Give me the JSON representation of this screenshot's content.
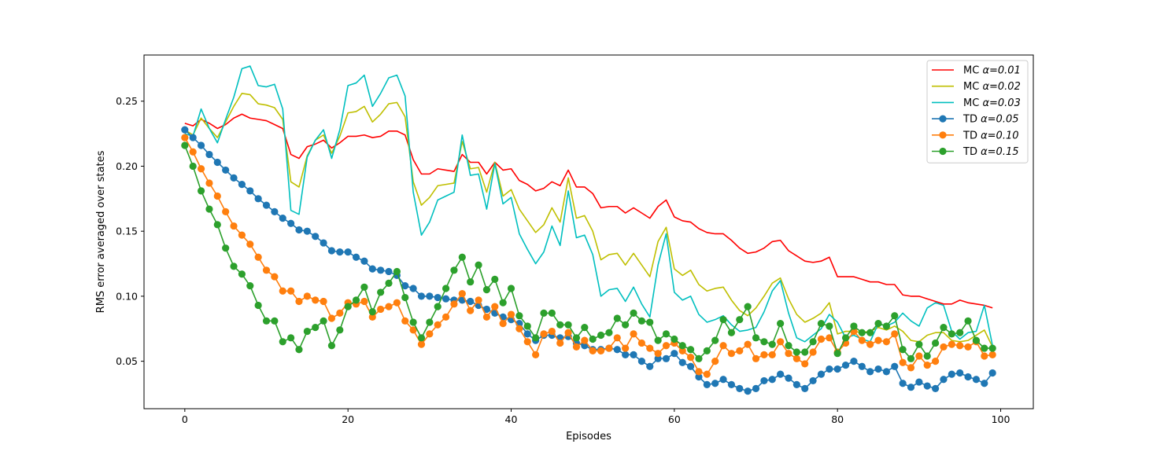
{
  "chart_data": {
    "type": "line",
    "title": "",
    "xlabel": "Episodes",
    "ylabel": "RMS error averaged over states",
    "xlim": [
      -5,
      104
    ],
    "ylim": [
      0.0135,
      0.2855
    ],
    "xticks": [
      0,
      20,
      40,
      60,
      80,
      100
    ],
    "yticks": [
      0.05,
      0.1,
      0.15,
      0.2,
      0.25
    ],
    "xtick_labels": [
      "0",
      "20",
      "40",
      "60",
      "80",
      "100"
    ],
    "ytick_labels": [
      "0.05",
      "0.10",
      "0.15",
      "0.20",
      "0.25"
    ],
    "grid": false,
    "legend_position": "top-right",
    "series": [
      {
        "name": "MC α=0.01",
        "prefix": "MC ",
        "param": "α=0.01",
        "color": "#ff0000",
        "marker": false,
        "values": [
          0.233,
          0.231,
          0.236,
          0.233,
          0.229,
          0.232,
          0.237,
          0.24,
          0.237,
          0.236,
          0.235,
          0.232,
          0.229,
          0.209,
          0.206,
          0.215,
          0.217,
          0.22,
          0.214,
          0.218,
          0.223,
          0.223,
          0.224,
          0.222,
          0.223,
          0.227,
          0.227,
          0.224,
          0.205,
          0.194,
          0.194,
          0.198,
          0.197,
          0.196,
          0.209,
          0.203,
          0.203,
          0.194,
          0.203,
          0.197,
          0.198,
          0.189,
          0.186,
          0.181,
          0.183,
          0.188,
          0.185,
          0.197,
          0.184,
          0.184,
          0.179,
          0.168,
          0.169,
          0.169,
          0.164,
          0.168,
          0.164,
          0.16,
          0.169,
          0.174,
          0.161,
          0.158,
          0.157,
          0.152,
          0.149,
          0.148,
          0.148,
          0.143,
          0.137,
          0.133,
          0.134,
          0.137,
          0.142,
          0.143,
          0.135,
          0.131,
          0.127,
          0.126,
          0.127,
          0.13,
          0.115,
          0.115,
          0.115,
          0.113,
          0.111,
          0.111,
          0.109,
          0.109,
          0.101,
          0.1,
          0.1,
          0.098,
          0.096,
          0.094,
          0.094,
          0.097,
          0.095,
          0.094,
          0.093,
          0.091
        ]
      },
      {
        "name": "MC α=0.02",
        "prefix": "MC ",
        "param": "α=0.02",
        "color": "#bfbf00",
        "marker": false,
        "values": [
          0.228,
          0.224,
          0.237,
          0.229,
          0.222,
          0.234,
          0.246,
          0.256,
          0.255,
          0.248,
          0.247,
          0.245,
          0.236,
          0.188,
          0.184,
          0.208,
          0.22,
          0.224,
          0.21,
          0.223,
          0.241,
          0.242,
          0.246,
          0.234,
          0.24,
          0.248,
          0.249,
          0.238,
          0.188,
          0.17,
          0.176,
          0.185,
          0.186,
          0.187,
          0.219,
          0.198,
          0.199,
          0.18,
          0.203,
          0.177,
          0.182,
          0.167,
          0.158,
          0.149,
          0.155,
          0.168,
          0.157,
          0.191,
          0.16,
          0.162,
          0.15,
          0.128,
          0.132,
          0.133,
          0.124,
          0.133,
          0.124,
          0.115,
          0.142,
          0.153,
          0.121,
          0.116,
          0.12,
          0.109,
          0.104,
          0.106,
          0.107,
          0.097,
          0.089,
          0.085,
          0.091,
          0.1,
          0.11,
          0.114,
          0.098,
          0.086,
          0.08,
          0.083,
          0.087,
          0.095,
          0.071,
          0.073,
          0.073,
          0.072,
          0.073,
          0.076,
          0.074,
          0.077,
          0.073,
          0.066,
          0.065,
          0.07,
          0.072,
          0.072,
          0.066,
          0.065,
          0.066,
          0.07,
          0.074,
          0.061
        ]
      },
      {
        "name": "MC α=0.03",
        "prefix": "MC ",
        "param": "α=0.03",
        "color": "#00bfbf",
        "marker": false,
        "values": [
          0.225,
          0.223,
          0.244,
          0.229,
          0.218,
          0.236,
          0.253,
          0.275,
          0.277,
          0.262,
          0.261,
          0.263,
          0.244,
          0.166,
          0.163,
          0.207,
          0.22,
          0.228,
          0.206,
          0.228,
          0.262,
          0.264,
          0.27,
          0.246,
          0.256,
          0.268,
          0.27,
          0.254,
          0.18,
          0.147,
          0.157,
          0.174,
          0.177,
          0.18,
          0.224,
          0.193,
          0.194,
          0.167,
          0.202,
          0.171,
          0.176,
          0.148,
          0.136,
          0.125,
          0.134,
          0.154,
          0.139,
          0.181,
          0.145,
          0.147,
          0.132,
          0.1,
          0.105,
          0.106,
          0.096,
          0.107,
          0.094,
          0.084,
          0.124,
          0.148,
          0.103,
          0.097,
          0.1,
          0.086,
          0.08,
          0.082,
          0.085,
          0.078,
          0.073,
          0.074,
          0.076,
          0.088,
          0.104,
          0.112,
          0.087,
          0.068,
          0.065,
          0.07,
          0.075,
          0.086,
          0.08,
          0.068,
          0.07,
          0.067,
          0.065,
          0.079,
          0.077,
          0.08,
          0.087,
          0.081,
          0.077,
          0.091,
          0.095,
          0.093,
          0.073,
          0.067,
          0.072,
          0.073,
          0.093,
          0.062
        ]
      },
      {
        "name": "TD α=0.05",
        "prefix": "TD ",
        "param": "α=0.05",
        "color": "#1f77b4",
        "marker": true,
        "values": [
          0.228,
          0.222,
          0.216,
          0.209,
          0.203,
          0.197,
          0.191,
          0.186,
          0.181,
          0.175,
          0.17,
          0.165,
          0.16,
          0.156,
          0.151,
          0.15,
          0.146,
          0.141,
          0.135,
          0.134,
          0.134,
          0.13,
          0.127,
          0.121,
          0.12,
          0.119,
          0.116,
          0.108,
          0.106,
          0.1,
          0.1,
          0.099,
          0.098,
          0.097,
          0.097,
          0.096,
          0.093,
          0.09,
          0.087,
          0.084,
          0.082,
          0.079,
          0.071,
          0.066,
          0.07,
          0.07,
          0.068,
          0.069,
          0.064,
          0.062,
          0.059,
          0.059,
          0.06,
          0.059,
          0.055,
          0.055,
          0.05,
          0.046,
          0.052,
          0.052,
          0.056,
          0.049,
          0.046,
          0.038,
          0.032,
          0.033,
          0.036,
          0.032,
          0.029,
          0.027,
          0.029,
          0.035,
          0.036,
          0.04,
          0.037,
          0.032,
          0.029,
          0.035,
          0.04,
          0.044,
          0.044,
          0.047,
          0.05,
          0.046,
          0.042,
          0.044,
          0.042,
          0.046,
          0.033,
          0.03,
          0.034,
          0.031,
          0.029,
          0.036,
          0.04,
          0.041,
          0.038,
          0.036,
          0.033,
          0.041
        ]
      },
      {
        "name": "TD α=0.10",
        "prefix": "TD ",
        "param": "α=0.10",
        "color": "#ff7f0e",
        "marker": true,
        "values": [
          0.222,
          0.211,
          0.198,
          0.187,
          0.177,
          0.165,
          0.154,
          0.147,
          0.14,
          0.13,
          0.12,
          0.115,
          0.104,
          0.104,
          0.096,
          0.1,
          0.097,
          0.096,
          0.083,
          0.087,
          0.095,
          0.094,
          0.096,
          0.084,
          0.09,
          0.092,
          0.095,
          0.081,
          0.074,
          0.063,
          0.071,
          0.078,
          0.084,
          0.094,
          0.102,
          0.089,
          0.097,
          0.084,
          0.092,
          0.079,
          0.086,
          0.075,
          0.065,
          0.055,
          0.071,
          0.073,
          0.064,
          0.072,
          0.061,
          0.066,
          0.058,
          0.058,
          0.06,
          0.068,
          0.06,
          0.071,
          0.064,
          0.06,
          0.056,
          0.062,
          0.064,
          0.058,
          0.053,
          0.042,
          0.04,
          0.05,
          0.062,
          0.056,
          0.058,
          0.063,
          0.052,
          0.055,
          0.055,
          0.065,
          0.056,
          0.052,
          0.048,
          0.057,
          0.067,
          0.068,
          0.057,
          0.064,
          0.073,
          0.066,
          0.063,
          0.066,
          0.065,
          0.071,
          0.049,
          0.045,
          0.054,
          0.047,
          0.05,
          0.061,
          0.063,
          0.062,
          0.061,
          0.065,
          0.054,
          0.055
        ]
      },
      {
        "name": "TD α=0.15",
        "prefix": "TD ",
        "param": "α=0.15",
        "color": "#2ca02c",
        "marker": true,
        "values": [
          0.216,
          0.2,
          0.181,
          0.167,
          0.155,
          0.137,
          0.123,
          0.117,
          0.108,
          0.093,
          0.081,
          0.081,
          0.065,
          0.068,
          0.059,
          0.073,
          0.076,
          0.081,
          0.062,
          0.074,
          0.092,
          0.097,
          0.107,
          0.088,
          0.103,
          0.11,
          0.119,
          0.099,
          0.08,
          0.068,
          0.08,
          0.092,
          0.106,
          0.12,
          0.13,
          0.111,
          0.124,
          0.105,
          0.113,
          0.095,
          0.106,
          0.085,
          0.077,
          0.068,
          0.087,
          0.087,
          0.078,
          0.078,
          0.068,
          0.076,
          0.067,
          0.07,
          0.072,
          0.083,
          0.078,
          0.087,
          0.081,
          0.08,
          0.066,
          0.071,
          0.067,
          0.062,
          0.059,
          0.052,
          0.058,
          0.066,
          0.082,
          0.072,
          0.082,
          0.092,
          0.068,
          0.065,
          0.063,
          0.079,
          0.062,
          0.057,
          0.057,
          0.065,
          0.079,
          0.077,
          0.056,
          0.068,
          0.077,
          0.072,
          0.072,
          0.079,
          0.077,
          0.085,
          0.059,
          0.052,
          0.063,
          0.054,
          0.064,
          0.076,
          0.071,
          0.072,
          0.081,
          0.066,
          0.06,
          0.06
        ]
      }
    ]
  }
}
